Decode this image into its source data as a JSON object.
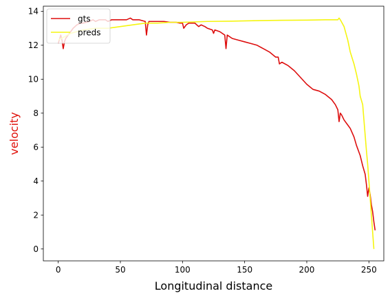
{
  "chart_data": {
    "type": "line",
    "title": "",
    "xlabel": "Longitudinal distance",
    "ylabel": "velocity",
    "ylabel_color": "#e0110b",
    "xlim": [
      -12,
      262
    ],
    "ylim": [
      -0.7,
      14.3
    ],
    "x_ticks": [
      0,
      50,
      100,
      150,
      200,
      250
    ],
    "y_ticks": [
      0,
      2,
      4,
      6,
      8,
      10,
      12,
      14
    ],
    "grid": false,
    "legend_position": "top-left",
    "series": [
      {
        "name": "gts",
        "color": "#dd0d0d",
        "x": [
          0,
          2,
          3,
          4,
          5,
          6,
          8,
          10,
          12,
          15,
          18,
          20,
          25,
          28,
          30,
          33,
          35,
          38,
          40,
          43,
          45,
          50,
          55,
          58,
          60,
          65,
          70,
          71,
          72,
          73,
          75,
          80,
          85,
          90,
          95,
          98,
          100,
          101,
          103,
          105,
          110,
          113,
          115,
          118,
          120,
          124,
          125,
          126,
          130,
          134,
          135,
          136,
          140,
          145,
          150,
          155,
          160,
          165,
          170,
          175,
          177,
          178,
          180,
          185,
          190,
          195,
          200,
          205,
          210,
          215,
          220,
          223,
          225,
          226,
          227,
          228,
          230,
          233,
          235,
          238,
          240,
          243,
          245,
          247,
          248,
          249,
          250,
          251,
          252,
          253,
          254,
          255
        ],
        "y": [
          12.1,
          12.6,
          12.3,
          11.8,
          12.2,
          12.4,
          12.6,
          12.8,
          13.0,
          13.2,
          13.3,
          13.3,
          13.4,
          13.5,
          13.4,
          13.5,
          13.5,
          13.5,
          13.4,
          13.5,
          13.5,
          13.5,
          13.5,
          13.6,
          13.5,
          13.5,
          13.4,
          12.6,
          13.2,
          13.4,
          13.4,
          13.4,
          13.4,
          13.35,
          13.35,
          13.3,
          13.3,
          13.0,
          13.2,
          13.3,
          13.3,
          13.1,
          13.2,
          13.1,
          13.0,
          12.9,
          12.7,
          12.9,
          12.8,
          12.6,
          11.8,
          12.6,
          12.4,
          12.3,
          12.2,
          12.1,
          12.0,
          11.8,
          11.6,
          11.3,
          11.3,
          10.9,
          11.0,
          10.8,
          10.5,
          10.1,
          9.7,
          9.4,
          9.3,
          9.1,
          8.8,
          8.5,
          8.2,
          7.5,
          8.0,
          7.9,
          7.6,
          7.3,
          7.1,
          6.6,
          6.1,
          5.5,
          4.9,
          4.4,
          3.8,
          3.1,
          3.6,
          3.2,
          2.6,
          2.2,
          1.6,
          1.1
        ]
      },
      {
        "name": "preds",
        "color": "#f5f50f",
        "x": [
          0,
          5,
          10,
          20,
          30,
          40,
          50,
          60,
          70,
          80,
          90,
          100,
          120,
          140,
          160,
          180,
          200,
          215,
          225,
          226,
          227,
          230,
          233,
          235,
          238,
          240,
          242,
          243,
          245,
          246,
          247,
          248,
          249,
          250,
          251,
          252,
          253,
          254
        ],
        "y": [
          12.3,
          12.5,
          12.7,
          12.9,
          13.0,
          13.0,
          13.1,
          13.2,
          13.3,
          13.3,
          13.35,
          13.35,
          13.4,
          13.42,
          13.45,
          13.47,
          13.48,
          13.5,
          13.5,
          13.6,
          13.5,
          13.1,
          12.3,
          11.6,
          10.9,
          10.3,
          9.6,
          9.0,
          8.5,
          7.6,
          6.7,
          5.8,
          5.0,
          4.0,
          3.0,
          2.0,
          1.0,
          0.0
        ]
      }
    ]
  }
}
